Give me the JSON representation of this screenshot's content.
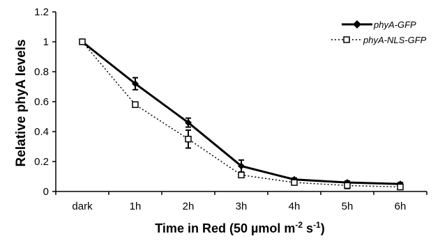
{
  "chart_data": {
    "type": "line",
    "categories": [
      "dark",
      "1h",
      "2h",
      "3h",
      "4h",
      "5h",
      "6h"
    ],
    "series": [
      {
        "name": "phyA-GFP",
        "values": [
          1.0,
          0.72,
          0.46,
          0.17,
          0.08,
          0.06,
          0.05
        ],
        "errors": [
          0,
          0.04,
          0.03,
          0.04,
          0.01,
          0.01,
          0.01
        ],
        "line_style": "solid",
        "marker": "filled-diamond",
        "color": "#000000"
      },
      {
        "name": "phyA-NLS-GFP",
        "values": [
          1.0,
          0.58,
          0.35,
          0.11,
          0.06,
          0.04,
          0.03
        ],
        "errors": [
          0,
          0,
          0.06,
          0,
          0,
          0.02,
          0.01
        ],
        "line_style": "dotted",
        "marker": "open-square",
        "color": "#000000"
      }
    ],
    "ylabel": "Relative phyA levels",
    "xlabel": "Time in Red (50 µmol m-2 s-1)",
    "xlabel_parts": {
      "main": "Time in Red (50 ",
      "mu": "µ",
      "mid": "mol m",
      "sup1": "-2",
      "space": " s",
      "sup2": "-1",
      "close": ")"
    },
    "ylim": [
      0,
      1.2
    ],
    "yticks": [
      "0",
      "0.2",
      "0.4",
      "0.6",
      "0.8",
      "1",
      "1.2"
    ],
    "grid": false,
    "legend_position": "top-right"
  }
}
